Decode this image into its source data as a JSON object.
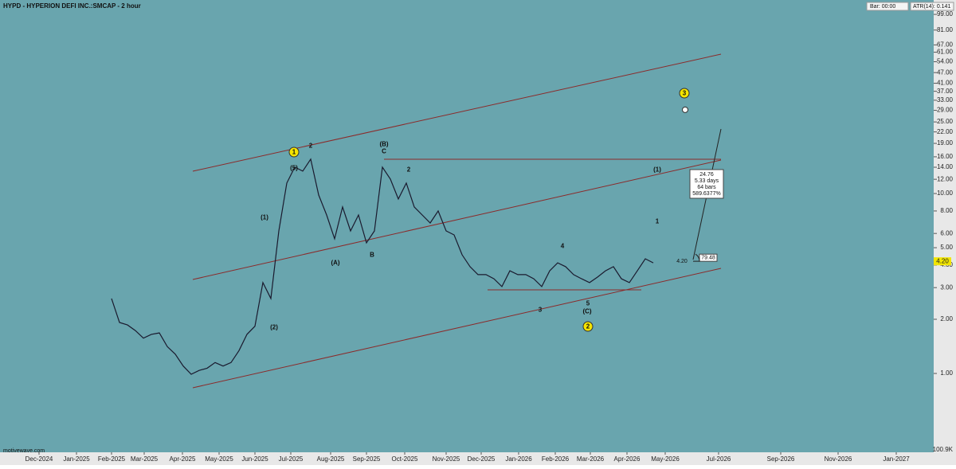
{
  "chart_data": {
    "type": "line",
    "title": "HYPD - HYPERION DEFI INC.:SMCAP - 2 hour",
    "bar_label": "Bar: 00:00",
    "indicator_label": "ATR(14): 0.141",
    "watermark": "motivewave.com",
    "volume_label": "100.9K",
    "log_scale": true,
    "color": "#1a1a2e",
    "ylim": [
      0.376,
      119
    ],
    "yticks": [
      {
        "value": 1,
        "label": "1.00"
      },
      {
        "value": 2,
        "label": "2.00"
      },
      {
        "value": 3,
        "label": "3.00"
      },
      {
        "value": 4,
        "label": "4.00"
      },
      {
        "value": 5,
        "label": "5.00"
      },
      {
        "value": 6,
        "label": "6.00"
      },
      {
        "value": 8,
        "label": "8.00"
      },
      {
        "value": 10,
        "label": "10.00"
      },
      {
        "value": 12,
        "label": "12.00"
      },
      {
        "value": 14,
        "label": "14.00"
      },
      {
        "value": 16,
        "label": "16.00"
      },
      {
        "value": 19,
        "label": "19.00"
      },
      {
        "value": 22,
        "label": "22.00"
      },
      {
        "value": 25,
        "label": "25.00"
      },
      {
        "value": 29,
        "label": "29.00"
      },
      {
        "value": 33,
        "label": "33.00"
      },
      {
        "value": 37,
        "label": "37.00"
      },
      {
        "value": 41,
        "label": "41.00"
      },
      {
        "value": 47,
        "label": "47.00"
      },
      {
        "value": 54,
        "label": "54.00"
      },
      {
        "value": 61,
        "label": "61.00"
      },
      {
        "value": 67,
        "label": "67.00"
      },
      {
        "value": 81,
        "label": "81.00"
      },
      {
        "value": 99,
        "label": "99.00"
      }
    ],
    "x_labels": [
      "Dec-2024",
      "Jan-2025",
      "Feb-2025",
      "Mar-2025",
      "Apr-2025",
      "May-2025",
      "Jun-2025",
      "Jul-2025",
      "Aug-2025",
      "Sep-2025",
      "Oct-2025",
      "Nov-2025",
      "Dec-2025",
      "Jan-2026",
      "Feb-2026",
      "Mar-2026",
      "Apr-2026",
      "May-2026",
      "Jul-2026",
      "Sep-2026",
      "Nov-2026",
      "Jan-2027"
    ],
    "values": [
      2.61,
      1.92,
      1.86,
      1.73,
      1.57,
      1.65,
      1.68,
      1.41,
      1.28,
      1.1,
      0.99,
      1.04,
      1.07,
      1.15,
      1.1,
      1.15,
      1.34,
      1.65,
      1.83,
      3.2,
      2.61,
      6.2,
      11.43,
      14.01,
      13.32,
      15.52,
      9.81,
      7.6,
      5.6,
      8.42,
      6.2,
      7.6,
      5.32,
      6.2,
      14.01,
      12.03,
      9.32,
      11.43,
      8.42,
      7.6,
      6.86,
      8.0,
      6.2,
      5.89,
      4.57,
      3.92,
      3.54,
      3.54,
      3.36,
      3.04,
      3.72,
      3.54,
      3.54,
      3.36,
      3.04,
      3.72,
      4.12,
      3.92,
      3.54,
      3.36,
      3.2,
      3.43,
      3.72,
      3.92,
      3.36,
      3.2,
      3.72,
      4.34,
      4.12
    ],
    "last_price": 4.2,
    "target_price": 28.9,
    "measure": {
      "start_label": "4.20",
      "angle_label": "79.48",
      "lines": [
        "24.76",
        "5.33 days",
        "64 bars",
        "589.6377%"
      ]
    },
    "annotations": [
      {
        "text": "1",
        "circled": true
      },
      {
        "text": "(5)",
        "circled": false
      },
      {
        "text": "(B)",
        "circled": false
      },
      {
        "text": "C",
        "circled": false
      },
      {
        "text": "(1)",
        "circled": false
      },
      {
        "text": "(2)",
        "circled": false
      },
      {
        "text": "(A)",
        "circled": false
      },
      {
        "text": "B",
        "circled": false
      },
      {
        "text": "(1)",
        "circled": false
      },
      {
        "text": "1",
        "circled": false
      },
      {
        "text": "(C)",
        "circled": false
      },
      {
        "text": "2",
        "circled": true
      },
      {
        "text": "3",
        "circled": true
      },
      {
        "text": "3",
        "circled": false
      },
      {
        "text": "5",
        "circled": false
      },
      {
        "text": "4",
        "circled": false
      },
      {
        "text": "2",
        "circled": false
      },
      {
        "text": "2",
        "circled": false
      }
    ]
  }
}
